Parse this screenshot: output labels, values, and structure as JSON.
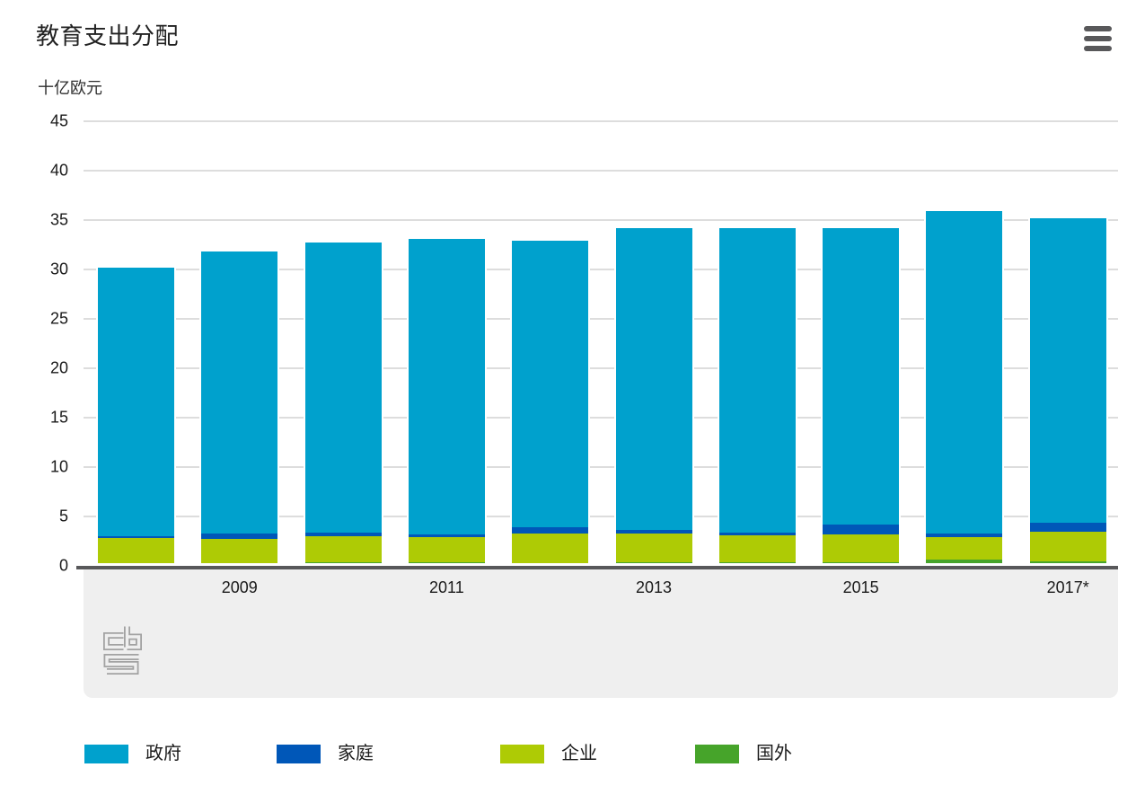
{
  "header": {
    "menu_icon": "hamburger-menu"
  },
  "chart_data": {
    "type": "bar",
    "stacked": true,
    "title": "教育支出分配",
    "unit_label": "十亿欧元",
    "categories": [
      "2008",
      "2009",
      "2010",
      "2011",
      "2012",
      "2013",
      "2014",
      "2015",
      "2016",
      "2017*"
    ],
    "x_axis_shown_labels": [
      "2009",
      "2011",
      "2013",
      "2015",
      "2017*"
    ],
    "y_ticks": [
      0,
      5,
      10,
      15,
      20,
      25,
      30,
      35,
      40,
      45
    ],
    "ylim": [
      0,
      45
    ],
    "grid": true,
    "legend_position": "bottom",
    "series": [
      {
        "name": "政府",
        "color": "#00a1cd",
        "values": [
          30.2,
          31.8,
          32.7,
          33.1,
          32.9,
          34.2,
          34.2,
          34.2,
          35.9,
          35.2
        ]
      },
      {
        "name": "家庭",
        "color": "#0057b8",
        "values": [
          3.0,
          3.3,
          3.4,
          3.2,
          3.9,
          3.6,
          3.4,
          4.2,
          3.3,
          4.4
        ]
      },
      {
        "name": "企业",
        "color": "#aecb05",
        "values": [
          2.8,
          2.7,
          3.0,
          2.9,
          3.3,
          3.3,
          3.1,
          3.2,
          2.9,
          3.5
        ]
      },
      {
        "name": "国外",
        "color": "#46a42a",
        "values": [
          0.3,
          0.3,
          0.4,
          0.4,
          0.3,
          0.4,
          0.4,
          0.4,
          0.6,
          0.5
        ]
      }
    ]
  },
  "footer": {
    "logo": "cbs-logo"
  },
  "colors": {
    "axis_line": "#58585a",
    "gridline": "#dddddd",
    "plot_footer_bg": "#efefef",
    "text": "#1a1a1a",
    "menu_icon": "#58585a",
    "logo_outline": "#a2a2a2"
  }
}
